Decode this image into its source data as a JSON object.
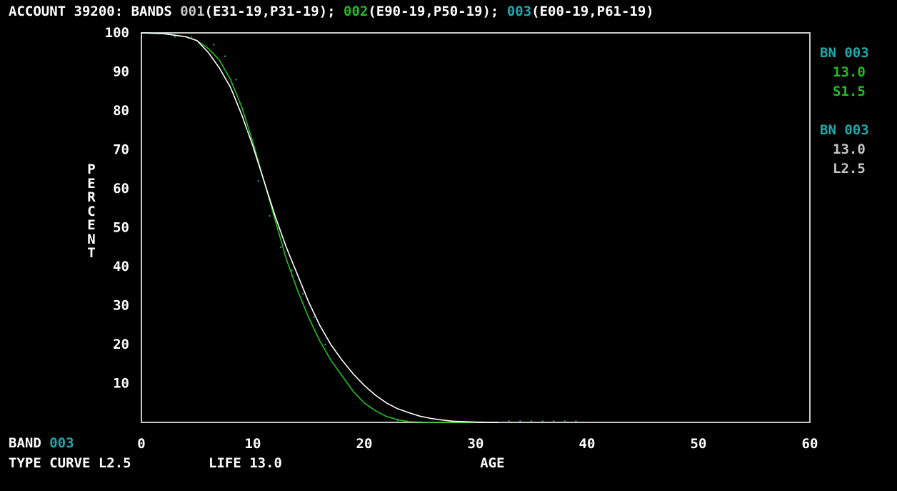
{
  "header": {
    "prefix": "ACCOUNT 39200: BANDS ",
    "band1": "001",
    "band1_range": "(E31-19,P31-19); ",
    "band2": "002",
    "band2_range": "(E90-19,P50-19); ",
    "band3": "003",
    "band3_range": "(E00-19,P61-19)"
  },
  "legend": [
    {
      "band": "BN 003",
      "life": "13.0",
      "curve": "S1.5"
    },
    {
      "band": "BN 003",
      "life": "13.0",
      "curve": "L2.5"
    }
  ],
  "footer": {
    "band_label": "BAND ",
    "band_value": "003",
    "type_curve": "TYPE CURVE L2.5",
    "life": "LIFE 13.0"
  },
  "colors": {
    "white": "#ffffff",
    "gray": "#c6c6c6",
    "green": "#1fc01f",
    "cyan": "#1fa8ac",
    "axes": "#c8c8c8"
  },
  "chart_data": {
    "type": "line",
    "xlabel": "AGE",
    "ylabel": "PERCENT",
    "xlim": [
      0,
      60
    ],
    "ylim": [
      0,
      100
    ],
    "x_ticks": [
      "0",
      "10",
      "20",
      "30",
      "40",
      "50",
      "60"
    ],
    "y_ticks": [
      "10",
      "20",
      "30",
      "40",
      "50",
      "60",
      "70",
      "80",
      "90",
      "100"
    ],
    "grid": false,
    "series": [
      {
        "name": "S1.5",
        "color": "#1fc01f",
        "x": [
          0,
          2,
          4,
          5,
          6,
          7,
          8,
          9,
          10,
          11,
          12,
          13,
          14,
          15,
          16,
          17,
          18,
          19,
          20,
          21,
          22,
          23,
          24,
          26,
          28,
          30
        ],
        "y": [
          100,
          99.8,
          99,
          98,
          96,
          93,
          88,
          81,
          72,
          62,
          52,
          42,
          34,
          27,
          21,
          16,
          12,
          8,
          5,
          3,
          1.5,
          0.7,
          0.2,
          0,
          0,
          0
        ]
      },
      {
        "name": "L2.5",
        "color": "#ffffff",
        "x": [
          0,
          2,
          4,
          5,
          6,
          7,
          8,
          9,
          10,
          11,
          12,
          13,
          14,
          15,
          16,
          17,
          18,
          19,
          20,
          21,
          22,
          23,
          24,
          25,
          26,
          27,
          28,
          30,
          32
        ],
        "y": [
          100,
          99.8,
          99,
          98,
          95,
          91,
          86,
          79,
          71,
          62,
          53,
          45,
          38,
          31,
          25,
          20,
          16,
          12.5,
          9.5,
          7,
          5,
          3.5,
          2.5,
          1.6,
          1,
          0.6,
          0.3,
          0.1,
          0
        ]
      },
      {
        "name": "observed",
        "color": "#1fa8ac",
        "style": "points",
        "x": [
          3,
          4.5,
          6.5,
          7.5,
          8.5,
          9.5,
          10.5,
          11.5,
          12.5,
          13.5,
          14.5,
          15.5,
          16.5,
          19.5,
          20.5,
          23,
          33,
          34,
          35,
          36,
          37,
          38,
          39
        ],
        "y": [
          99,
          99,
          97,
          94,
          88,
          75,
          62,
          53,
          45,
          39,
          33,
          27,
          20,
          6.5,
          4,
          0.5,
          0.3,
          0.3,
          0.3,
          0.3,
          0.3,
          0.3,
          0.3
        ]
      }
    ]
  }
}
